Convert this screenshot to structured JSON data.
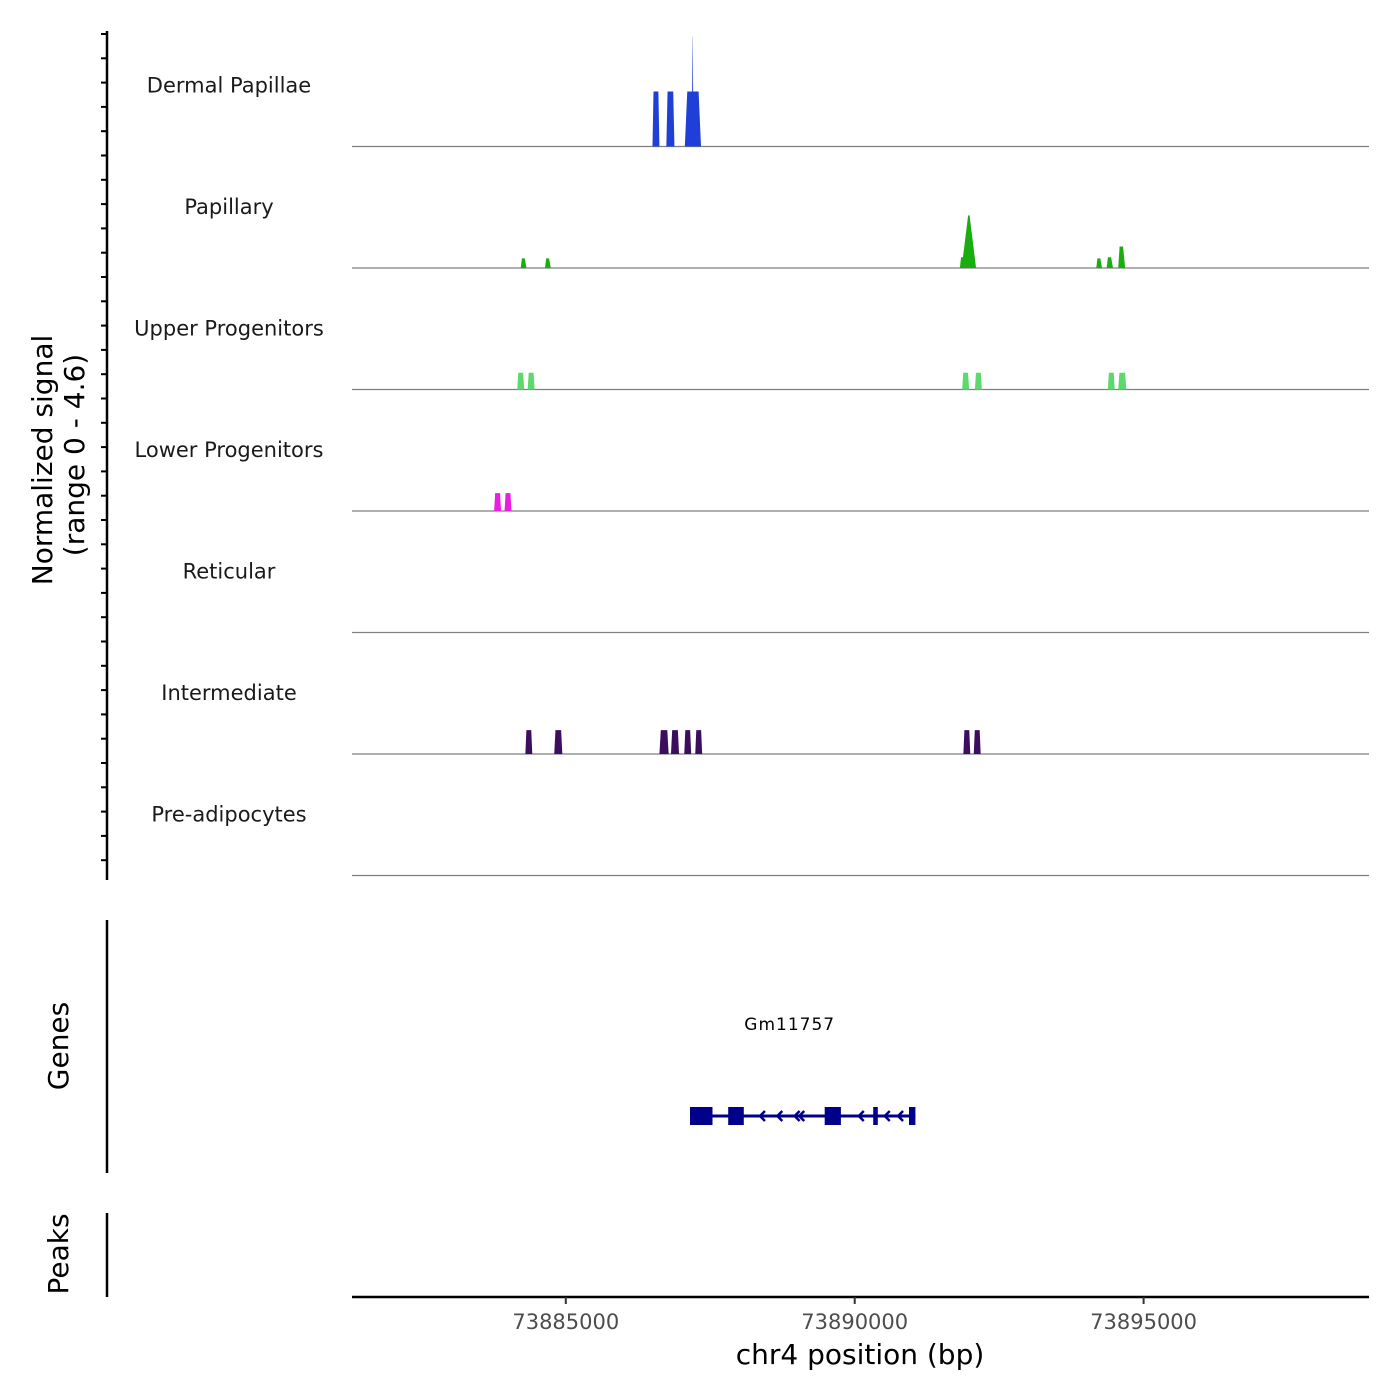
{
  "chart_data": {
    "type": "coverage",
    "chromosome": "chr4",
    "xlabel": "chr4 position (bp)",
    "xlim": [
      73881300,
      73898900
    ],
    "x_ticks": [
      73885000,
      73890000,
      73895000
    ],
    "x_tick_labels": [
      "73885000",
      "73890000",
      "73895000"
    ],
    "signal_axis": {
      "label_line1": "Normalized signal",
      "label_line2": "(range 0 - 4.6)",
      "ylim": [
        0,
        4.6
      ]
    },
    "tracks": [
      {
        "name": "Dermal Papillae",
        "color": "#1f3fd6",
        "peaks": [
          {
            "start": 73886500,
            "end": 73886620,
            "height": 2.3,
            "shape": "bar"
          },
          {
            "start": 73886740,
            "end": 73886880,
            "height": 2.3,
            "shape": "bar"
          },
          {
            "start": 73887060,
            "end": 73887340,
            "height": 2.3,
            "shape": "bar"
          },
          {
            "start": 73887180,
            "end": 73887210,
            "height": 4.6,
            "shape": "spike"
          }
        ]
      },
      {
        "name": "Papillary",
        "color": "#1aad0f",
        "peaks": [
          {
            "start": 73884220,
            "end": 73884320,
            "height": 0.4,
            "shape": "bump"
          },
          {
            "start": 73884640,
            "end": 73884740,
            "height": 0.4,
            "shape": "bump"
          },
          {
            "start": 73891820,
            "end": 73891920,
            "height": 0.45,
            "shape": "bump"
          },
          {
            "start": 73891850,
            "end": 73892100,
            "height": 2.2,
            "shape": "spike"
          },
          {
            "start": 73894180,
            "end": 73894280,
            "height": 0.4,
            "shape": "bump"
          },
          {
            "start": 73894360,
            "end": 73894470,
            "height": 0.45,
            "shape": "bump"
          },
          {
            "start": 73894560,
            "end": 73894680,
            "height": 0.9,
            "shape": "bump"
          }
        ]
      },
      {
        "name": "Upper Progenitors",
        "color": "#5dd96c",
        "peaks": [
          {
            "start": 73884160,
            "end": 73884280,
            "height": 0.7,
            "shape": "bar"
          },
          {
            "start": 73884340,
            "end": 73884460,
            "height": 0.7,
            "shape": "bar"
          },
          {
            "start": 73891860,
            "end": 73891980,
            "height": 0.7,
            "shape": "bar"
          },
          {
            "start": 73892080,
            "end": 73892200,
            "height": 0.7,
            "shape": "bar"
          },
          {
            "start": 73894380,
            "end": 73894500,
            "height": 0.7,
            "shape": "bar"
          },
          {
            "start": 73894560,
            "end": 73894700,
            "height": 0.7,
            "shape": "bar"
          }
        ]
      },
      {
        "name": "Lower Progenitors",
        "color": "#e81ee0",
        "peaks": [
          {
            "start": 73883760,
            "end": 73883880,
            "height": 0.75,
            "shape": "bar"
          },
          {
            "start": 73883940,
            "end": 73884060,
            "height": 0.75,
            "shape": "bar"
          }
        ]
      },
      {
        "name": "Reticular",
        "color": "#2f6fb0",
        "peaks": []
      },
      {
        "name": "Intermediate",
        "color": "#3b0f5e",
        "peaks": [
          {
            "start": 73884300,
            "end": 73884420,
            "height": 1.0,
            "shape": "bar"
          },
          {
            "start": 73884800,
            "end": 73884940,
            "height": 1.0,
            "shape": "bar"
          },
          {
            "start": 73886620,
            "end": 73886780,
            "height": 1.0,
            "shape": "bar"
          },
          {
            "start": 73886820,
            "end": 73886960,
            "height": 1.0,
            "shape": "bar"
          },
          {
            "start": 73887050,
            "end": 73887170,
            "height": 1.0,
            "shape": "bar"
          },
          {
            "start": 73887240,
            "end": 73887360,
            "height": 1.0,
            "shape": "bar"
          },
          {
            "start": 73891880,
            "end": 73892000,
            "height": 1.0,
            "shape": "bar"
          },
          {
            "start": 73892060,
            "end": 73892180,
            "height": 1.0,
            "shape": "bar"
          }
        ]
      },
      {
        "name": "Pre-adipocytes",
        "color": "#8c1aa6",
        "peaks": []
      }
    ],
    "genes_track": {
      "label": "Genes",
      "genes": [
        {
          "name": "Gm11757",
          "strand": "-",
          "start": 73887150,
          "end": 73891050,
          "color": "#00008b",
          "exons": [
            {
              "start": 73887150,
              "end": 73887540
            },
            {
              "start": 73887810,
              "end": 73888080
            },
            {
              "start": 73889480,
              "end": 73889760
            },
            {
              "start": 73890320,
              "end": 73890400
            },
            {
              "start": 73890940,
              "end": 73891050
            }
          ],
          "arrows": [
            73888360,
            73888660,
            73888960,
            73889040,
            73890070,
            73890520,
            73890750
          ]
        }
      ]
    },
    "peaks_track": {
      "label": "Peaks",
      "peaks": []
    }
  }
}
